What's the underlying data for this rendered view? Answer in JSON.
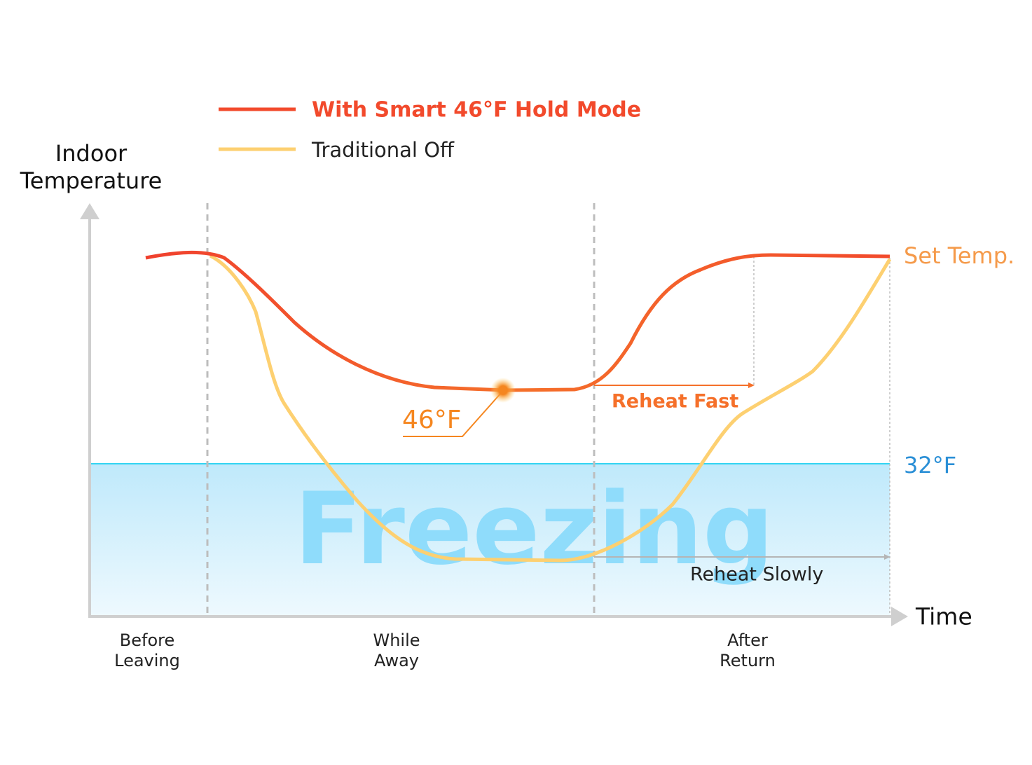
{
  "legend": {
    "items": [
      "With Smart 46°F Hold Mode",
      "Traditional Off"
    ]
  },
  "y_axis_label": [
    "Indoor",
    "Temperature"
  ],
  "x_axis_label": "Time",
  "phases": [
    [
      "Before",
      "Leaving"
    ],
    [
      "While",
      "Away"
    ],
    [
      "After",
      "Return"
    ]
  ],
  "annotations": {
    "set_temp": "Set Temp.",
    "freeze_temp": "32°F",
    "hold_temp": "46°F",
    "reheat_fast": "Reheat Fast",
    "reheat_slowly": "Reheat Slowly",
    "zone": "Freezing"
  }
}
